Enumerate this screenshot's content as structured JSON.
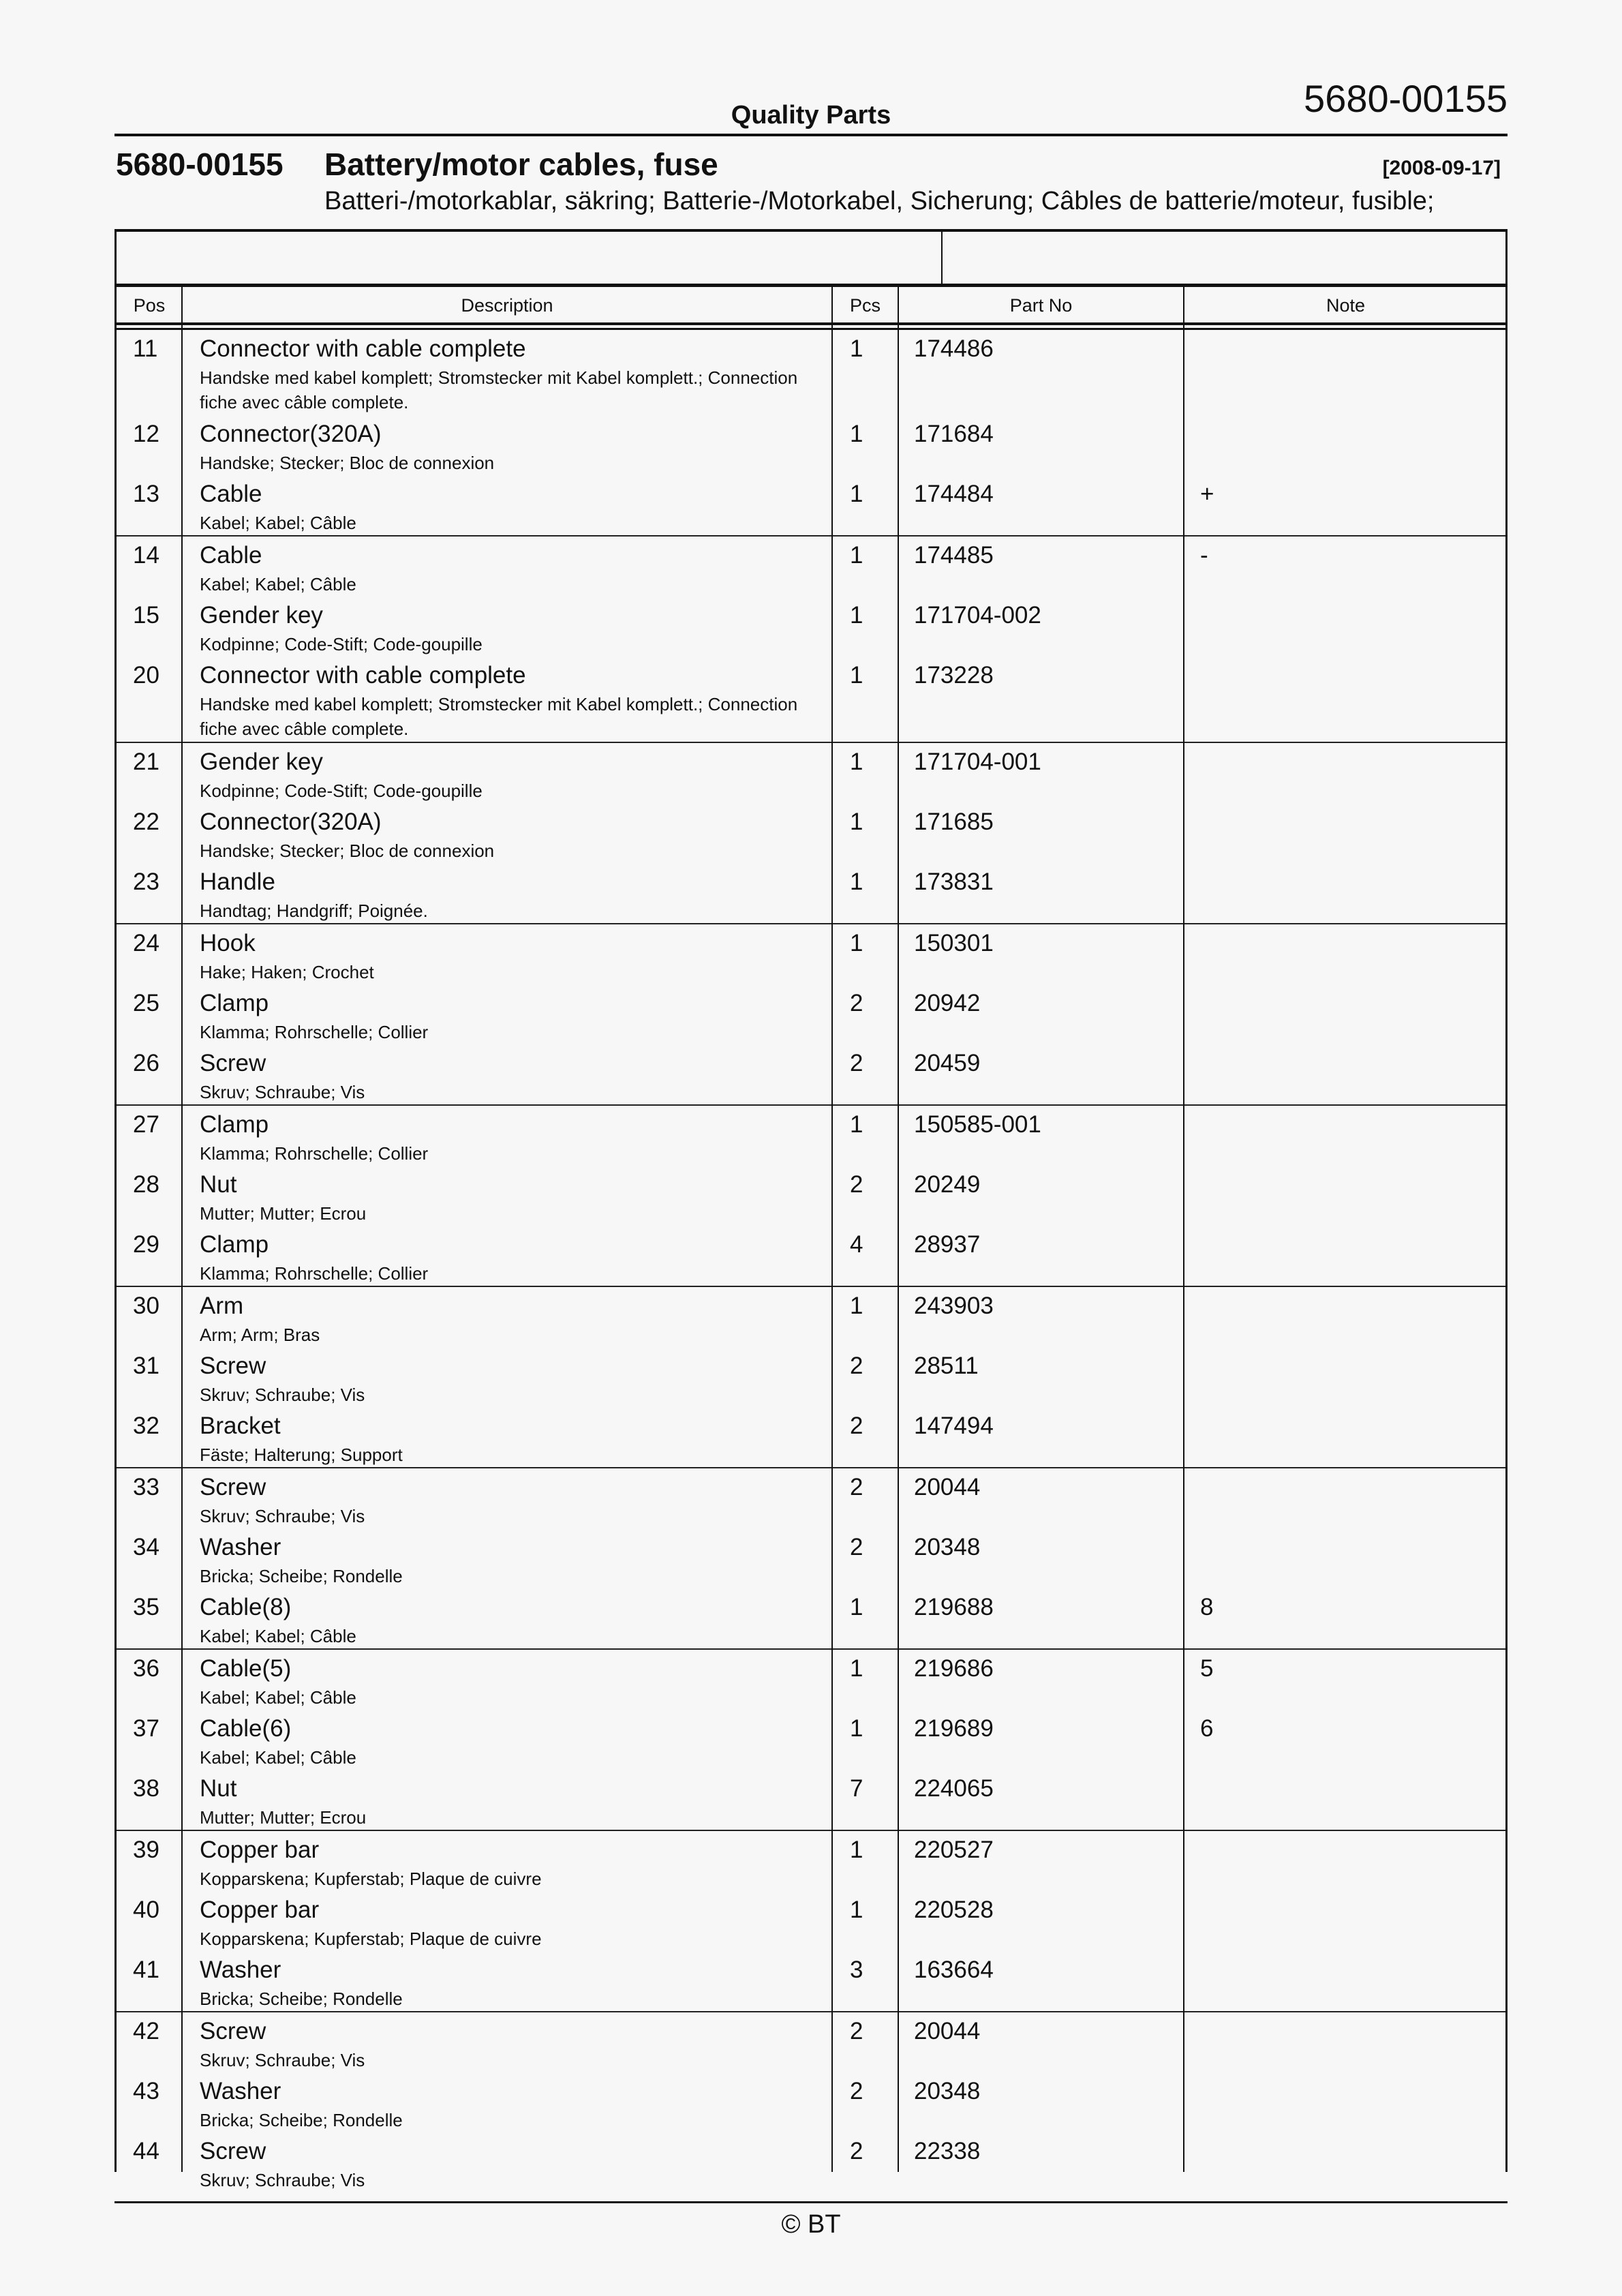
{
  "header": {
    "doc_number": "5680-00155",
    "section": "Quality Parts"
  },
  "title": {
    "number": "5680-00155",
    "name": "Battery/motor cables, fuse",
    "date": "[2008-09-17]",
    "translations": "Batteri-/motorkablar, säkring; Batterie-/Motorkabel, Sicherung; Câbles de batterie/moteur, fusible;"
  },
  "columns": {
    "pos": "Pos",
    "description": "Description",
    "pcs": "Pcs",
    "part_no": "Part No",
    "note": "Note"
  },
  "groups": [
    [
      {
        "pos": "11",
        "desc": "Connector with cable complete",
        "sub": "Handske med kabel komplett; Stromstecker mit Kabel komplett.; Connection fiche avec câble complete.",
        "pcs": "1",
        "pn": "174486",
        "note": ""
      },
      {
        "pos": "12",
        "desc": "Connector(320A)",
        "sub": "Handske; Stecker; Bloc de connexion",
        "pcs": "1",
        "pn": "171684",
        "note": ""
      },
      {
        "pos": "13",
        "desc": "Cable",
        "sub": "Kabel; Kabel; Câble",
        "pcs": "1",
        "pn": "174484",
        "note": "+"
      }
    ],
    [
      {
        "pos": "14",
        "desc": "Cable",
        "sub": "Kabel; Kabel; Câble",
        "pcs": "1",
        "pn": "174485",
        "note": "-"
      },
      {
        "pos": "15",
        "desc": "Gender key",
        "sub": "Kodpinne; Code-Stift; Code-goupille",
        "pcs": "1",
        "pn": "171704-002",
        "note": ""
      },
      {
        "pos": "20",
        "desc": "Connector with cable complete",
        "sub": "Handske med kabel komplett; Stromstecker mit Kabel komplett.; Connection fiche avec câble complete.",
        "pcs": "1",
        "pn": "173228",
        "note": ""
      }
    ],
    [
      {
        "pos": "21",
        "desc": "Gender key",
        "sub": "Kodpinne; Code-Stift; Code-goupille",
        "pcs": "1",
        "pn": "171704-001",
        "note": ""
      },
      {
        "pos": "22",
        "desc": "Connector(320A)",
        "sub": "Handske; Stecker; Bloc de connexion",
        "pcs": "1",
        "pn": "171685",
        "note": ""
      },
      {
        "pos": "23",
        "desc": "Handle",
        "sub": "Handtag; Handgriff; Poignée.",
        "pcs": "1",
        "pn": "173831",
        "note": ""
      }
    ],
    [
      {
        "pos": "24",
        "desc": "Hook",
        "sub": "Hake; Haken; Crochet",
        "pcs": "1",
        "pn": "150301",
        "note": ""
      },
      {
        "pos": "25",
        "desc": "Clamp",
        "sub": "Klamma; Rohrschelle; Collier",
        "pcs": "2",
        "pn": "20942",
        "note": ""
      },
      {
        "pos": "26",
        "desc": "Screw",
        "sub": "Skruv; Schraube; Vis",
        "pcs": "2",
        "pn": "20459",
        "note": ""
      }
    ],
    [
      {
        "pos": "27",
        "desc": "Clamp",
        "sub": "Klamma; Rohrschelle; Collier",
        "pcs": "1",
        "pn": "150585-001",
        "note": ""
      },
      {
        "pos": "28",
        "desc": "Nut",
        "sub": "Mutter; Mutter; Ecrou",
        "pcs": "2",
        "pn": "20249",
        "note": ""
      },
      {
        "pos": "29",
        "desc": "Clamp",
        "sub": "Klamma; Rohrschelle; Collier",
        "pcs": "4",
        "pn": "28937",
        "note": ""
      }
    ],
    [
      {
        "pos": "30",
        "desc": "Arm",
        "sub": "Arm; Arm; Bras",
        "pcs": "1",
        "pn": "243903",
        "note": ""
      },
      {
        "pos": "31",
        "desc": "Screw",
        "sub": "Skruv; Schraube; Vis",
        "pcs": "2",
        "pn": "28511",
        "note": ""
      },
      {
        "pos": "32",
        "desc": "Bracket",
        "sub": "Fäste; Halterung; Support",
        "pcs": "2",
        "pn": "147494",
        "note": ""
      }
    ],
    [
      {
        "pos": "33",
        "desc": "Screw",
        "sub": "Skruv; Schraube; Vis",
        "pcs": "2",
        "pn": "20044",
        "note": ""
      },
      {
        "pos": "34",
        "desc": "Washer",
        "sub": "Bricka; Scheibe; Rondelle",
        "pcs": "2",
        "pn": "20348",
        "note": ""
      },
      {
        "pos": "35",
        "desc": "Cable(8)",
        "sub": "Kabel; Kabel; Câble",
        "pcs": "1",
        "pn": "219688",
        "note": "8"
      }
    ],
    [
      {
        "pos": "36",
        "desc": "Cable(5)",
        "sub": "Kabel; Kabel; Câble",
        "pcs": "1",
        "pn": "219686",
        "note": "5"
      },
      {
        "pos": "37",
        "desc": "Cable(6)",
        "sub": "Kabel; Kabel; Câble",
        "pcs": "1",
        "pn": "219689",
        "note": "6"
      },
      {
        "pos": "38",
        "desc": "Nut",
        "sub": "Mutter; Mutter; Ecrou",
        "pcs": "7",
        "pn": "224065",
        "note": ""
      }
    ],
    [
      {
        "pos": "39",
        "desc": "Copper bar",
        "sub": "Kopparskena; Kupferstab; Plaque de cuivre",
        "pcs": "1",
        "pn": "220527",
        "note": ""
      },
      {
        "pos": "40",
        "desc": "Copper bar",
        "sub": "Kopparskena; Kupferstab; Plaque de cuivre",
        "pcs": "1",
        "pn": "220528",
        "note": ""
      },
      {
        "pos": "41",
        "desc": "Washer",
        "sub": "Bricka; Scheibe; Rondelle",
        "pcs": "3",
        "pn": "163664",
        "note": ""
      }
    ],
    [
      {
        "pos": "42",
        "desc": "Screw",
        "sub": "Skruv; Schraube; Vis",
        "pcs": "2",
        "pn": "20044",
        "note": ""
      },
      {
        "pos": "43",
        "desc": "Washer",
        "sub": "Bricka; Scheibe; Rondelle",
        "pcs": "2",
        "pn": "20348",
        "note": ""
      },
      {
        "pos": "44",
        "desc": "Screw",
        "sub": "Skruv; Schraube; Vis",
        "pcs": "2",
        "pn": "22338",
        "note": ""
      }
    ]
  ],
  "footer": {
    "copyright": "© BT"
  }
}
